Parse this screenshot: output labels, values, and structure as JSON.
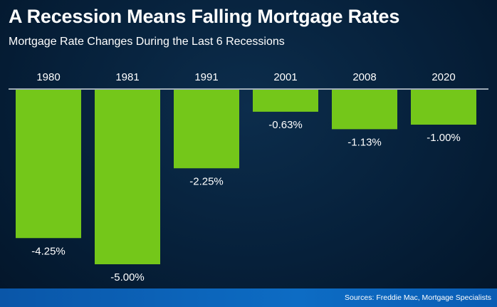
{
  "colors": {
    "bar": "#74c71a",
    "axis": "#d0d8e0",
    "text": "#ffffff"
  },
  "chart_data": {
    "type": "bar",
    "title": "A Recession Means Falling Mortgage Rates",
    "subtitle": "Mortgage Rate Changes During the Last 6 Recessions",
    "categories": [
      "1980",
      "1981",
      "1991",
      "2001",
      "2008",
      "2020"
    ],
    "values": [
      -4.25,
      -5.0,
      -2.25,
      -0.63,
      -1.13,
      -1.0
    ],
    "data_labels": [
      "-4.25%",
      "-5.00%",
      "-2.25%",
      "-0.63%",
      "-1.13%",
      "-1.00%"
    ],
    "ylim": [
      -5.0,
      0
    ],
    "xlabel": "",
    "ylabel": "",
    "grid": false,
    "legend": "none"
  },
  "footer": {
    "source": "Sources: Freddie Mac, Mortgage Specialists"
  }
}
